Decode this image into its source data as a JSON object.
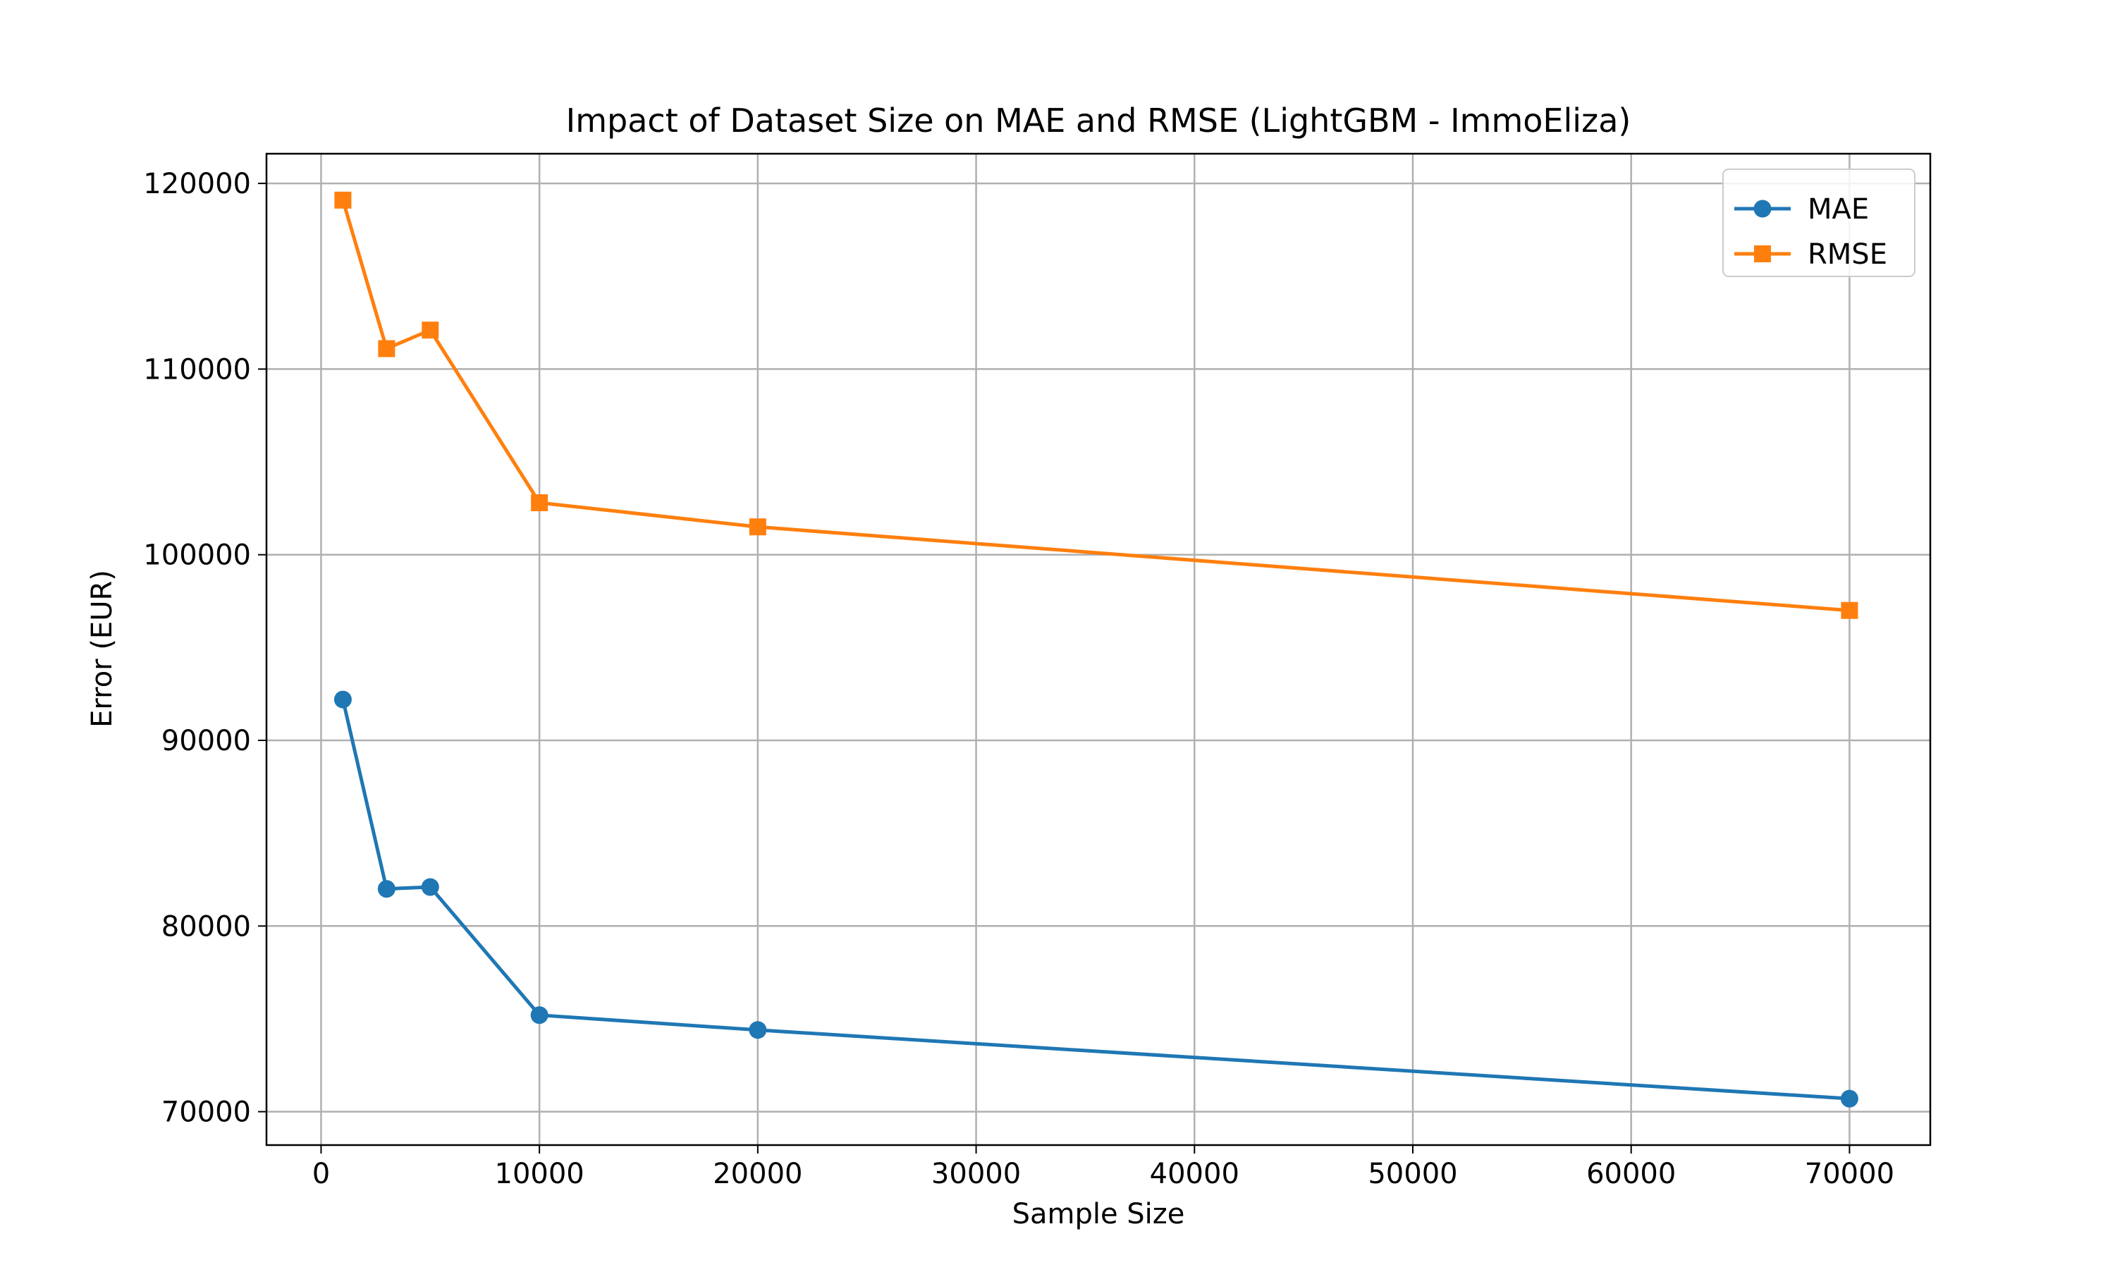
{
  "chart_data": {
    "type": "line",
    "title": "Impact of Dataset Size on MAE and RMSE (LightGBM - ImmoEliza)",
    "xlabel": "Sample Size",
    "ylabel": "Error (EUR)",
    "xlim": [
      -2500,
      73700
    ],
    "ylim": [
      68200,
      121600
    ],
    "xticks": [
      0,
      10000,
      20000,
      30000,
      40000,
      50000,
      60000,
      70000
    ],
    "yticks": [
      70000,
      80000,
      90000,
      100000,
      110000,
      120000
    ],
    "grid": true,
    "legend_position": "top-right",
    "x": [
      1000,
      3000,
      5000,
      10000,
      20000,
      70000
    ],
    "series": [
      {
        "name": "MAE",
        "marker": "circle",
        "color": "#1f77b4",
        "values": [
          92200,
          82000,
          82100,
          75200,
          74400,
          70700
        ]
      },
      {
        "name": "RMSE",
        "marker": "square",
        "color": "#ff7f0e",
        "values": [
          119100,
          111100,
          112100,
          102800,
          101500,
          97000
        ]
      }
    ]
  }
}
